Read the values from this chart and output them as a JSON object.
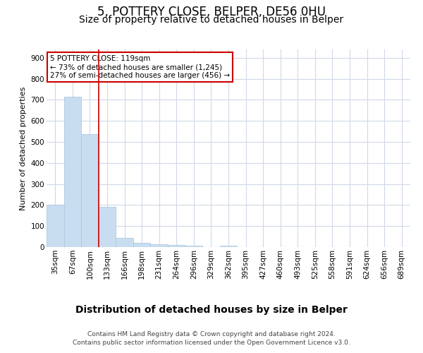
{
  "title1": "5, POTTERY CLOSE, BELPER, DE56 0HU",
  "title2": "Size of property relative to detached houses in Belper",
  "xlabel": "Distribution of detached houses by size in Belper",
  "ylabel": "Number of detached properties",
  "categories": [
    "35sqm",
    "67sqm",
    "100sqm",
    "133sqm",
    "166sqm",
    "198sqm",
    "231sqm",
    "264sqm",
    "296sqm",
    "329sqm",
    "362sqm",
    "395sqm",
    "427sqm",
    "460sqm",
    "493sqm",
    "525sqm",
    "558sqm",
    "591sqm",
    "624sqm",
    "656sqm",
    "689sqm"
  ],
  "values": [
    200,
    715,
    537,
    193,
    45,
    20,
    13,
    10,
    8,
    0,
    8,
    0,
    0,
    0,
    0,
    0,
    0,
    0,
    0,
    0,
    0
  ],
  "bar_color": "#c9ddf0",
  "bar_edge_color": "#aec8e0",
  "reference_line_x": 2.5,
  "reference_line_color": "#cc0000",
  "annotation_line1": "5 POTTERY CLOSE: 119sqm",
  "annotation_line2": "← 73% of detached houses are smaller (1,245)",
  "annotation_line3": "27% of semi-detached houses are larger (456) →",
  "annotation_box_color": "#ffffff",
  "annotation_box_edge_color": "#cc0000",
  "ylim": [
    0,
    940
  ],
  "yticks": [
    0,
    100,
    200,
    300,
    400,
    500,
    600,
    700,
    800,
    900
  ],
  "footer1": "Contains HM Land Registry data © Crown copyright and database right 2024.",
  "footer2": "Contains public sector information licensed under the Open Government Licence v3.0.",
  "bg_color": "#ffffff",
  "plot_bg_color": "#ffffff",
  "grid_color": "#d0d8e8",
  "title1_fontsize": 12,
  "title2_fontsize": 10,
  "xlabel_fontsize": 10,
  "ylabel_fontsize": 8,
  "tick_fontsize": 7.5,
  "footer_fontsize": 6.5
}
